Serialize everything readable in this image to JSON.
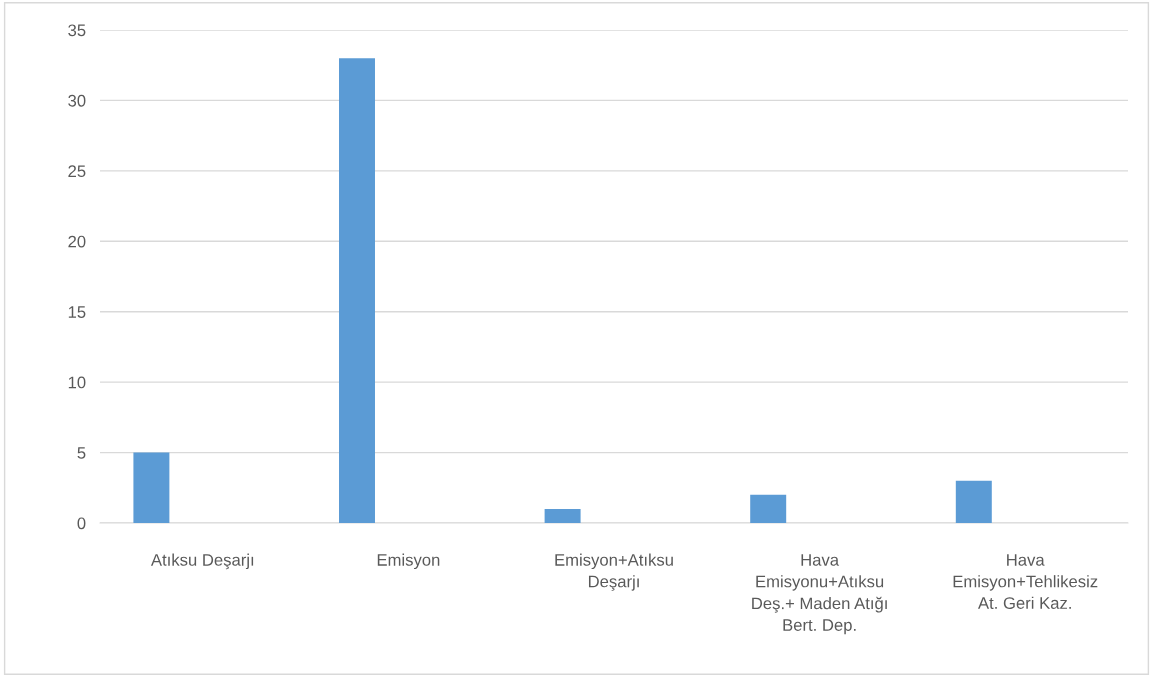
{
  "chart_data": {
    "type": "bar",
    "categories": [
      "Atıksu Deşarjı",
      "Emisyon",
      "Emisyon+Atıksu\nDeşarjı",
      "Hava\nEmisyonu+Atıksu\nDeş.+ Maden Atığı\nBert. Dep.",
      "Hava\nEmisyon+Tehlikesiz\nAt. Geri Kaz."
    ],
    "series": [
      {
        "color": "#5b9bd5",
        "values": [
          5,
          33,
          1,
          2,
          3
        ]
      }
    ],
    "ylim": [
      0,
      35
    ],
    "yticks": [
      0,
      5,
      10,
      15,
      20,
      25,
      30,
      35
    ],
    "grid": "y",
    "legend": false
  }
}
